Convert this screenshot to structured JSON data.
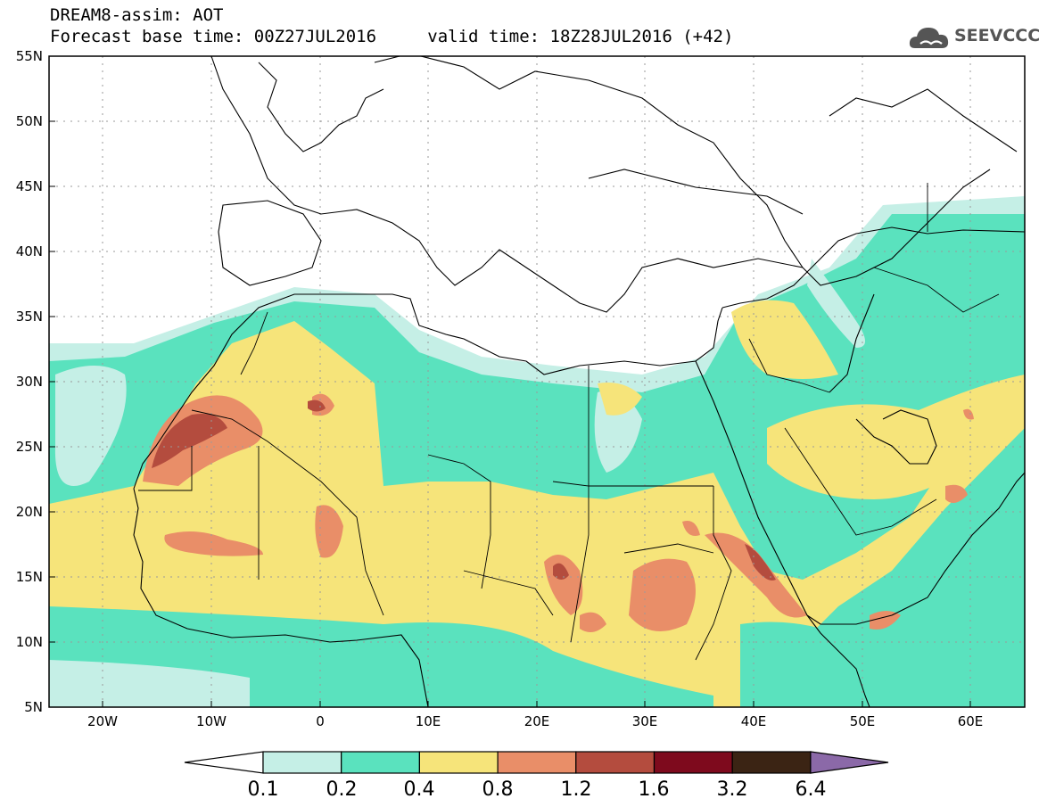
{
  "header": {
    "title": "DREAM8-assim: AOT",
    "base_time": "Forecast base time: 00Z27JUL2016",
    "valid_time": "valid time: 18Z28JUL2016 (+42)"
  },
  "logo": {
    "text": "SEEVCCC",
    "icon": "cloud-icon"
  },
  "map": {
    "lat_labels": [
      "55N",
      "50N",
      "45N",
      "40N",
      "35N",
      "30N",
      "25N",
      "20N",
      "15N",
      "10N",
      "5N"
    ],
    "lon_labels": [
      "20W",
      "10W",
      "0",
      "10E",
      "20E",
      "30E",
      "40E",
      "50E",
      "60E"
    ],
    "lat_range": [
      5,
      55
    ],
    "lon_range": [
      -25,
      65
    ],
    "gridlines": "dotted",
    "region": "Northern Africa, Mediterranean, Middle East"
  },
  "colorbar": {
    "colors": [
      "#ffffff",
      "#c5efe6",
      "#5ae2be",
      "#f6e47a",
      "#e98e68",
      "#b44c3e",
      "#7e0a1d",
      "#3b2414",
      "#8b69a8"
    ],
    "ticks": [
      "0.1",
      "0.2",
      "0.4",
      "0.8",
      "1.2",
      "1.6",
      "3.2",
      "6.4"
    ]
  }
}
